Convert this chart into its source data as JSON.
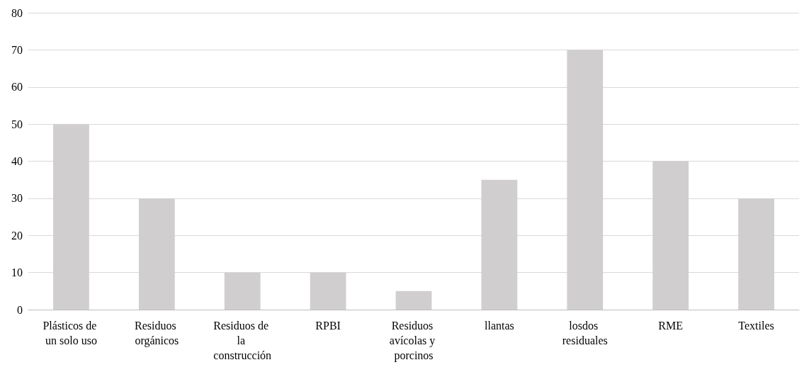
{
  "chart_data": {
    "type": "bar",
    "categories": [
      "Plásticos de un solo uso",
      "Residuos orgánicos",
      "Residuos de la construcción",
      "RPBI",
      "Residuos avícolas y porcinos",
      "llantas",
      "losdos residuales",
      "RME",
      "Textiles"
    ],
    "values": [
      50,
      30,
      10,
      10,
      5,
      35,
      70,
      40,
      30
    ],
    "color": "#d0cece",
    "ylim": [
      0,
      80
    ],
    "yticks": [
      0,
      10,
      20,
      30,
      40,
      50,
      60,
      70,
      80
    ],
    "grid": "y"
  }
}
